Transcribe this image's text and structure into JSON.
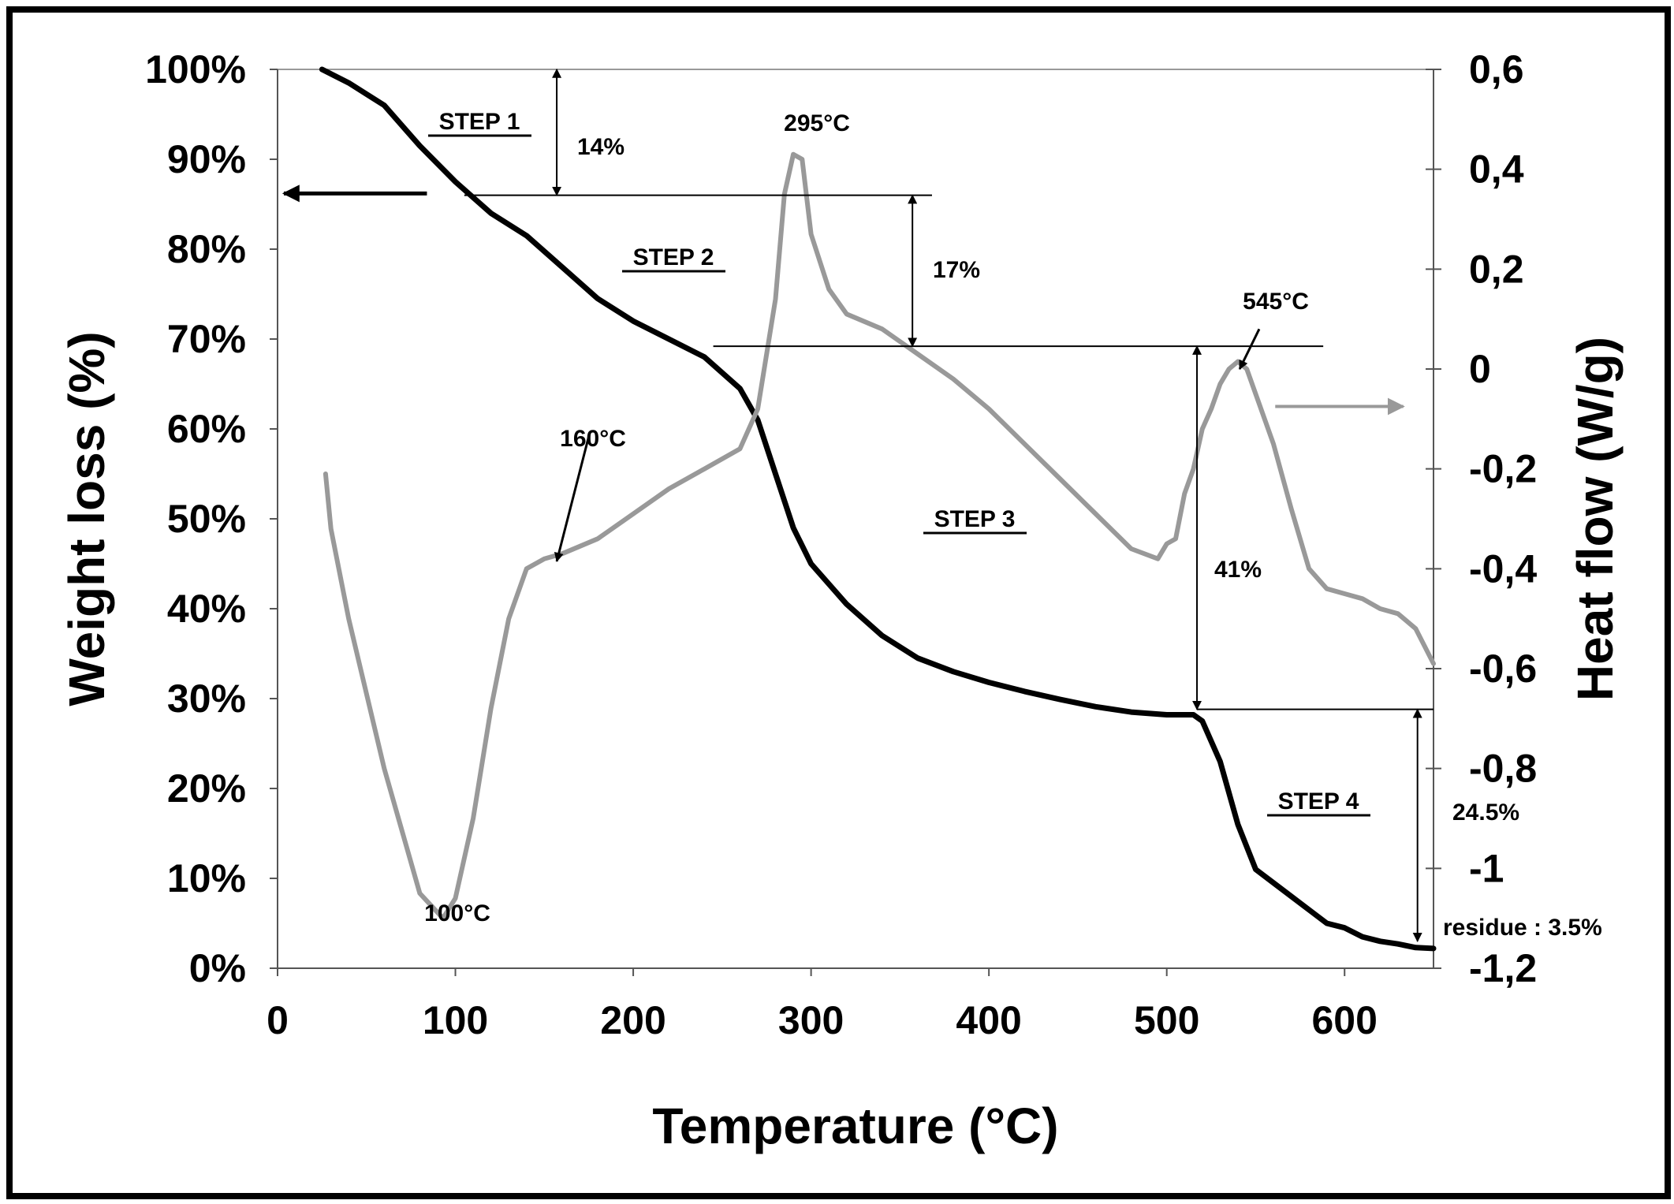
{
  "chart_data": {
    "type": "line",
    "title": "",
    "xlabel": "Temperature (°C)",
    "ylabel": "Weight loss (%)",
    "y2label": "Heat flow (W/g)",
    "xlim": [
      0,
      650
    ],
    "ylim": [
      0,
      100
    ],
    "y2lim": [
      -1.2,
      0.6
    ],
    "x_ticks": [
      "0",
      "100",
      "200",
      "300",
      "400",
      "500",
      "600"
    ],
    "y_ticks": [
      "0%",
      "10%",
      "20%",
      "30%",
      "40%",
      "50%",
      "60%",
      "70%",
      "80%",
      "90%",
      "100%"
    ],
    "y2_ticks": [
      "-1,2",
      "-1",
      "-0,8",
      "-0,6",
      "-0,4",
      "-0,2",
      "0",
      "0,2",
      "0,4",
      "0,6"
    ],
    "y2_tick_values": [
      -1.2,
      -1.0,
      -0.8,
      -0.6,
      -0.4,
      -0.2,
      0.0,
      0.2,
      0.4,
      0.6
    ],
    "grid": false,
    "series": [
      {
        "name": "Weight loss",
        "axis": "left",
        "color": "#000000",
        "x": [
          25,
          40,
          60,
          80,
          100,
          120,
          140,
          160,
          180,
          200,
          220,
          240,
          260,
          270,
          280,
          290,
          300,
          320,
          340,
          360,
          380,
          400,
          420,
          440,
          460,
          480,
          500,
          505,
          510,
          515,
          520,
          530,
          540,
          550,
          560,
          570,
          580,
          590,
          600,
          610,
          620,
          630,
          640,
          650
        ],
        "values": [
          100,
          98.5,
          96,
          91.5,
          87.5,
          84,
          81.5,
          78,
          74.5,
          72,
          70,
          68,
          64.5,
          61,
          55,
          49,
          45,
          40.5,
          37,
          34.5,
          33,
          31.8,
          30.8,
          29.9,
          29.1,
          28.5,
          28.2,
          28.2,
          28.2,
          28.2,
          27.5,
          23,
          16,
          11,
          9.5,
          8,
          6.5,
          5,
          4.5,
          3.5,
          3,
          2.7,
          2.3,
          2.2
        ]
      },
      {
        "name": "Heat flow",
        "axis": "right",
        "color": "#999999",
        "x": [
          27,
          30,
          40,
          60,
          80,
          93,
          100,
          110,
          120,
          130,
          140,
          150,
          160,
          180,
          200,
          220,
          240,
          260,
          270,
          280,
          285,
          290,
          295,
          300,
          310,
          320,
          340,
          360,
          380,
          400,
          420,
          440,
          460,
          480,
          495,
          500,
          505,
          510,
          515,
          520,
          525,
          530,
          535,
          540,
          545,
          550,
          560,
          570,
          580,
          590,
          600,
          610,
          620,
          630,
          640,
          650
        ],
        "values": [
          -0.21,
          -0.32,
          -0.5,
          -0.8,
          -1.05,
          -1.1,
          -1.06,
          -0.9,
          -0.68,
          -0.5,
          -0.4,
          -0.38,
          -0.37,
          -0.34,
          -0.29,
          -0.24,
          -0.2,
          -0.16,
          -0.08,
          0.14,
          0.35,
          0.43,
          0.42,
          0.27,
          0.16,
          0.11,
          0.08,
          0.03,
          -0.02,
          -0.08,
          -0.15,
          -0.22,
          -0.29,
          -0.36,
          -0.38,
          -0.35,
          -0.34,
          -0.25,
          -0.2,
          -0.12,
          -0.08,
          -0.03,
          0.0,
          0.015,
          0.0,
          -0.05,
          -0.15,
          -0.28,
          -0.4,
          -0.44,
          -0.45,
          -0.46,
          -0.48,
          -0.49,
          -0.52,
          -0.59
        ]
      }
    ],
    "annotations": {
      "step1": "STEP 1",
      "step2": "STEP 2",
      "step3": "STEP 3",
      "step4": "STEP 4",
      "loss1": "14%",
      "loss2": "17%",
      "loss3": "41%",
      "loss4": "24.5%",
      "residue": "residue : 3.5%",
      "peak100": "100°C",
      "peak160": "160°C",
      "peak295": "295°C",
      "peak545": "545°C"
    }
  }
}
